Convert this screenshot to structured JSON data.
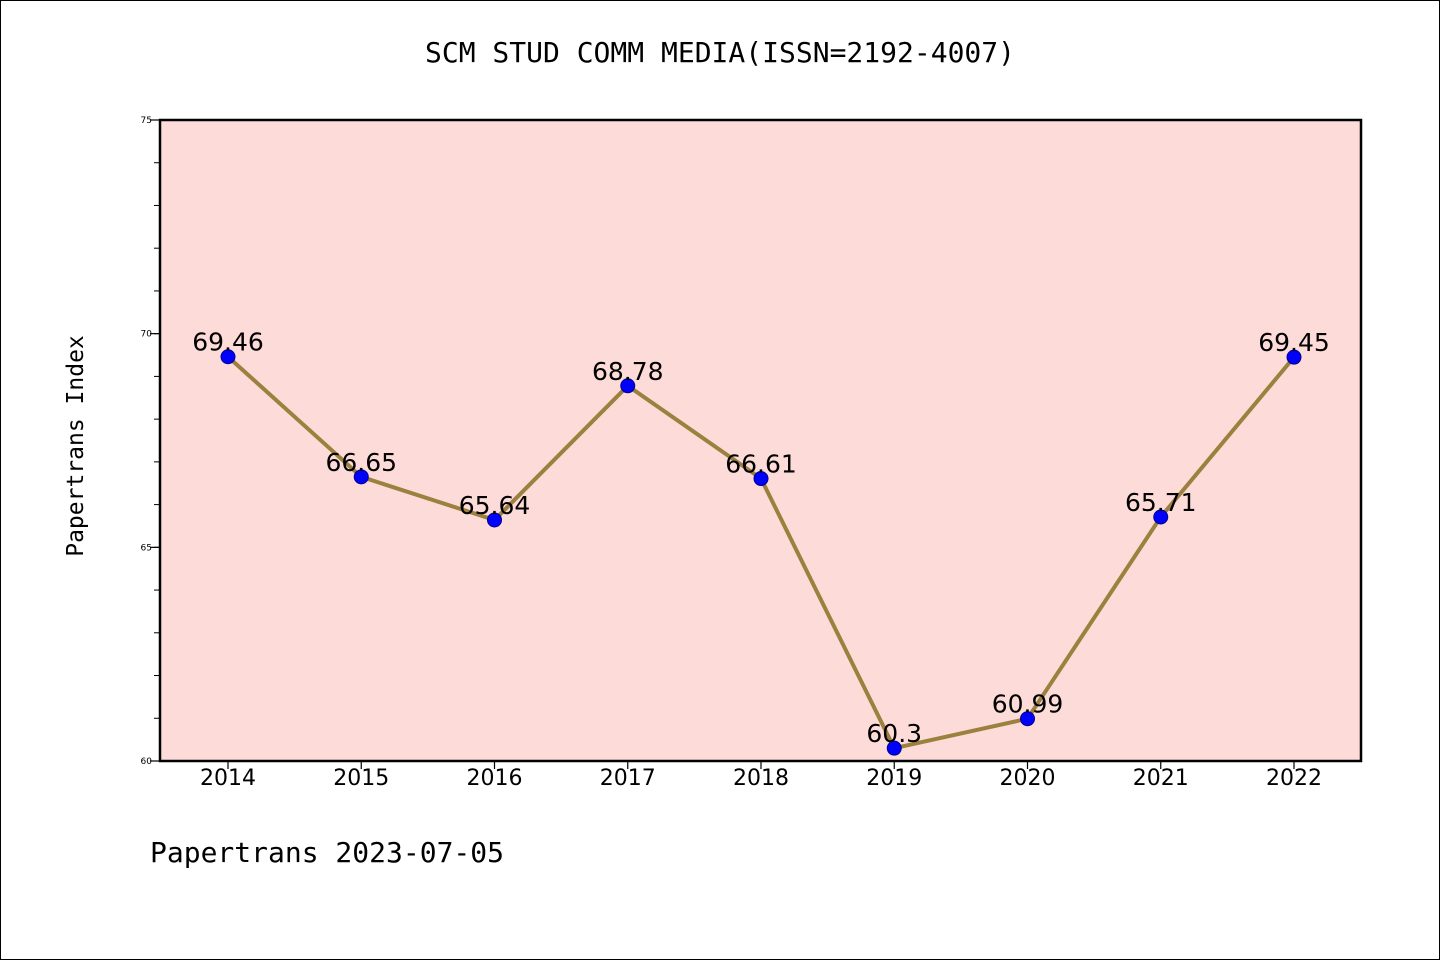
{
  "chart_data": {
    "type": "line",
    "title": "SCM STUD COMM MEDIA(ISSN=2192-4007)",
    "xlabel": "",
    "ylabel": "Papertrans Index",
    "categories": [
      "2014",
      "2015",
      "2016",
      "2017",
      "2018",
      "2019",
      "2020",
      "2021",
      "2022"
    ],
    "series": [
      {
        "values": [
          69.46,
          66.65,
          65.64,
          68.78,
          66.61,
          60.3,
          60.99,
          65.71,
          69.45
        ],
        "data_labels": [
          "69.46",
          "66.65",
          "65.64",
          "68.78",
          "66.61",
          "60.3",
          "60.99",
          "65.71",
          "69.45"
        ]
      }
    ],
    "ylim": [
      60,
      75
    ],
    "yticks": [
      "60",
      "65",
      "70",
      "75"
    ],
    "y_minor_step": 1,
    "grid": false,
    "legend": "none",
    "colors": {
      "plot_background": "#fddbd8",
      "line": "#9b803e",
      "marker": "#0000ff",
      "marker_edge": "#00008b"
    }
  },
  "footer": "Papertrans 2023-07-05"
}
